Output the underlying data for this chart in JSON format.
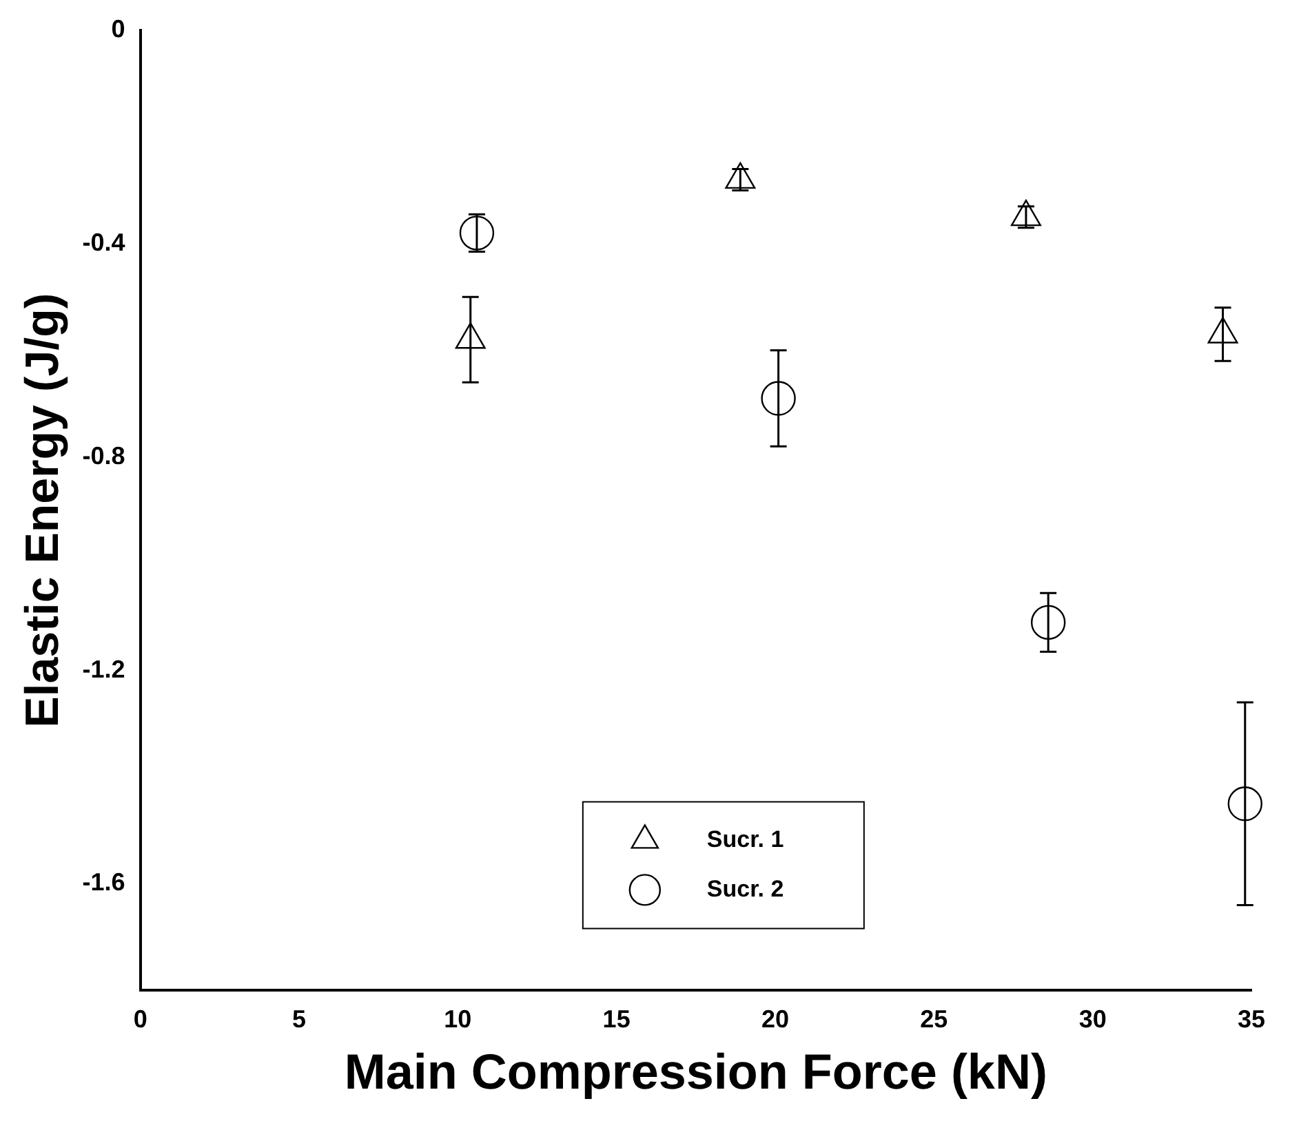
{
  "chart_data": {
    "type": "scatter",
    "xlabel": "Main Compression Force (kN)",
    "ylabel": "Elastic Energy (J/g)",
    "xlim": [
      0,
      35
    ],
    "xticks": [
      0,
      5,
      10,
      15,
      20,
      25,
      30,
      35
    ],
    "ylim": [
      -1.8,
      0
    ],
    "yticks": [
      -1.6,
      -1.2,
      -0.8,
      -0.4,
      0
    ],
    "grid": false,
    "legend": "bottom",
    "series": [
      {
        "name": "Sucr. 1",
        "color": "#000000",
        "marker": "triangle",
        "x": [
          10.4,
          18.9,
          27.9,
          34.1
        ],
        "values": [
          -0.58,
          -0.28,
          -0.35,
          -0.57
        ],
        "errors": [
          0.08,
          0.02,
          0.02,
          0.05
        ]
      },
      {
        "name": "Sucr. 2",
        "color": "#000000",
        "marker": "circle",
        "x": [
          10.6,
          20.1,
          28.6,
          34.8
        ],
        "values": [
          -0.38,
          -0.69,
          -1.11,
          -1.45
        ],
        "errors": [
          0.035,
          0.09,
          0.055,
          0.19
        ]
      }
    ]
  }
}
